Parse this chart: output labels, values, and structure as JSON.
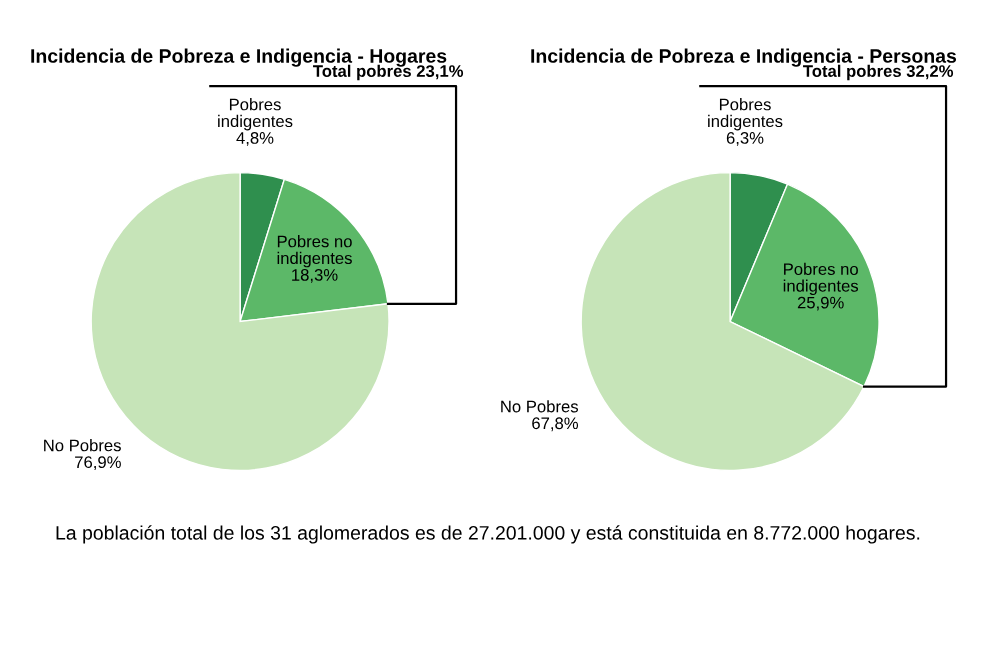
{
  "chart_data": [
    {
      "type": "pie",
      "title": "Incidencia de Pobreza e Indigencia - Hogares",
      "categories": [
        "Pobres\nindigentes",
        "Pobres no\nindigentes",
        "No Pobres"
      ],
      "values": [
        4.8,
        18.3,
        76.9
      ],
      "value_labels": [
        "4,8%",
        "18,3%",
        "76,9%"
      ],
      "colors": [
        "#2f8f4e",
        "#5cb868",
        "#c6e4b8"
      ],
      "annotations": [
        "Total pobres 23,1%",
        "La población total de los 31 aglomerados es de 27.201.000 y está constituida en 8.772.000 hogares."
      ]
    },
    {
      "type": "pie",
      "title": "Incidencia de Pobreza e Indigencia - Personas",
      "categories": [
        "Pobres\nindigentes",
        "Pobres no\nindigentes",
        "No Pobres"
      ],
      "values": [
        6.3,
        25.9,
        67.8
      ],
      "value_labels": [
        "6,3%",
        "25,9%",
        "67,8%"
      ],
      "colors": [
        "#2f8f4e",
        "#5cb868",
        "#c6e4b8"
      ],
      "annotations": [
        "Total pobres 32,2%"
      ]
    }
  ]
}
